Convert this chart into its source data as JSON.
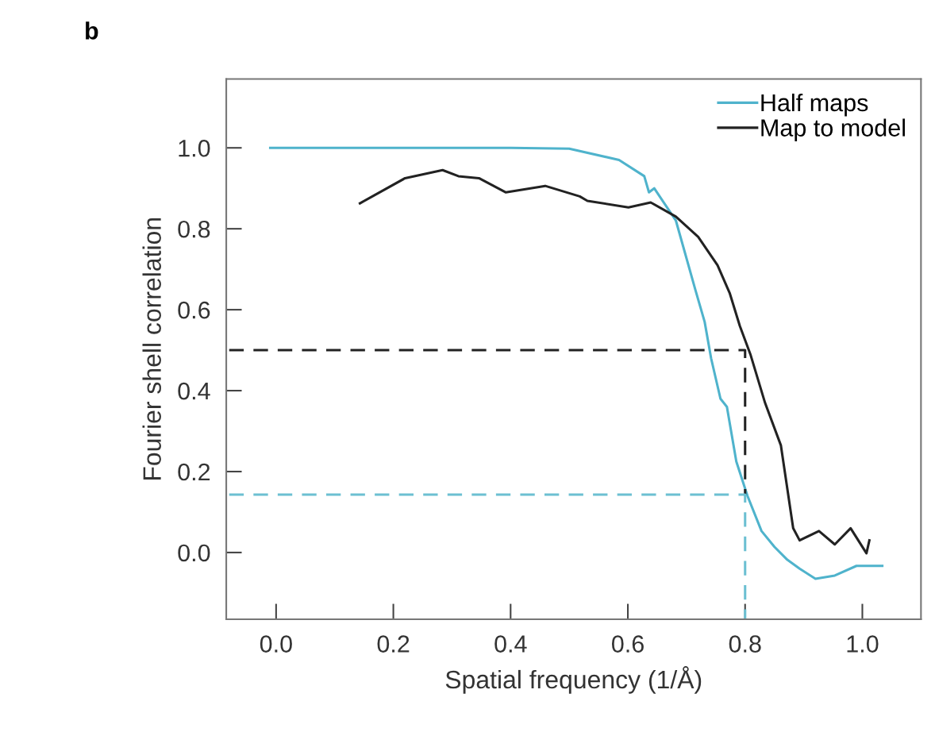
{
  "chart_data": {
    "type": "line",
    "xlabel": "Spatial frequency (1/Å)",
    "ylabel": "Fourier shell correlation",
    "annotations": [
      "b"
    ],
    "xlim": [
      -0.085,
      1.1
    ],
    "ylim": [
      -0.165,
      1.17
    ],
    "xticks": [
      {
        "value": 0,
        "label": "0.0"
      },
      {
        "value": 0.2,
        "label": "0.2"
      },
      {
        "value": 0.4,
        "label": "0.4"
      },
      {
        "value": 0.6,
        "label": "0.6"
      },
      {
        "value": 0.8,
        "label": "0.8"
      },
      {
        "value": 1.0,
        "label": "1.0"
      }
    ],
    "yticks": [
      {
        "value": 0,
        "label": "0.0"
      },
      {
        "value": 0.2,
        "label": "0.2"
      },
      {
        "value": 0.4,
        "label": "0.4"
      },
      {
        "value": 0.6,
        "label": "0.6"
      },
      {
        "value": 0.8,
        "label": "0.8"
      },
      {
        "value": 1.0,
        "label": "1.0"
      }
    ],
    "grid": false,
    "legend": "top right",
    "marker": "none",
    "series": [
      {
        "name": "Half maps",
        "color": "#4fb3cc",
        "line_style": "solid",
        "x": [
          -0.01,
          0.2,
          0.4,
          0.5,
          0.585,
          0.628,
          0.636,
          0.645,
          0.682,
          0.715,
          0.731,
          0.742,
          0.758,
          0.769,
          0.785,
          0.804,
          0.828,
          0.85,
          0.872,
          0.893,
          0.92,
          0.953,
          0.99,
          1.034
        ],
        "values": [
          1.0,
          1.0,
          1.0,
          0.998,
          0.97,
          0.93,
          0.89,
          0.9,
          0.82,
          0.65,
          0.57,
          0.48,
          0.38,
          0.36,
          0.225,
          0.14,
          0.053,
          0.014,
          -0.018,
          -0.04,
          -0.065,
          -0.057,
          -0.033,
          -0.033
        ]
      },
      {
        "name": "Map to model",
        "color": "#222222",
        "line_style": "solid",
        "x": [
          0.143,
          0.22,
          0.284,
          0.311,
          0.346,
          0.392,
          0.459,
          0.518,
          0.531,
          0.601,
          0.639,
          0.682,
          0.72,
          0.753,
          0.774,
          0.791,
          0.809,
          0.834,
          0.861,
          0.882,
          0.893,
          0.926,
          0.953,
          0.98,
          1.007,
          1.012
        ],
        "values": [
          0.863,
          0.925,
          0.945,
          0.93,
          0.925,
          0.89,
          0.906,
          0.88,
          0.869,
          0.853,
          0.865,
          0.83,
          0.78,
          0.71,
          0.64,
          0.56,
          0.49,
          0.37,
          0.265,
          0.06,
          0.03,
          0.053,
          0.02,
          0.06,
          -0.002,
          0.03
        ]
      },
      {
        "color": "#222222",
        "line_style": "dashed",
        "x": [
          -0.08,
          0.8,
          0.8
        ],
        "values": [
          0.5,
          0.5,
          0.143
        ]
      },
      {
        "color": "#6cc0d2",
        "line_style": "dashed",
        "x": [
          -0.08,
          0.8,
          0.8
        ],
        "values": [
          0.143,
          0.143,
          -0.165
        ]
      }
    ]
  }
}
